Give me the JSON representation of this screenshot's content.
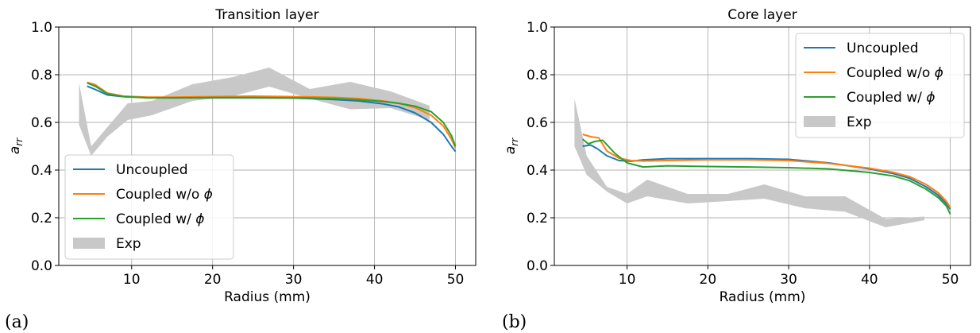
{
  "figure": {
    "panel_tags": [
      "(a)",
      "(b)"
    ]
  },
  "colors": {
    "uncoupled": "#1f77b4",
    "coupled_wo_phi": "#ff7f0e",
    "coupled_w_phi": "#2ca02c",
    "exp": "#c8c8c8",
    "grid": "#b0b0b0"
  },
  "chart_data": [
    {
      "type": "line",
      "title": "Transition layer",
      "xlabel": "Radius (mm)",
      "ylabel": "a_rr",
      "xlim": [
        1,
        52.5
      ],
      "ylim": [
        0,
        1.0
      ],
      "xticks": [
        10,
        20,
        30,
        40,
        50
      ],
      "yticks": [
        0.0,
        0.2,
        0.4,
        0.6,
        0.8,
        1.0
      ],
      "ytick_labels": [
        "0.0",
        "0.2",
        "0.4",
        "0.6",
        "0.8",
        "1.0"
      ],
      "grid": true,
      "legend_position": "lower-left",
      "series": [
        {
          "name": "Uncoupled",
          "color": "#1f77b4",
          "x": [
            4.5,
            5.5,
            7,
            9,
            12,
            15,
            20,
            25,
            30,
            35,
            38,
            41,
            43,
            45,
            47,
            48.5,
            49.5,
            50
          ],
          "y": [
            0.752,
            0.738,
            0.715,
            0.708,
            0.704,
            0.703,
            0.703,
            0.703,
            0.702,
            0.696,
            0.69,
            0.678,
            0.665,
            0.64,
            0.6,
            0.55,
            0.5,
            0.478
          ]
        },
        {
          "name": "Coupled w/o ϕ",
          "color": "#ff7f0e",
          "x": [
            4.5,
            5.5,
            7,
            9,
            12,
            15,
            20,
            25,
            30,
            35,
            38,
            41,
            43,
            45,
            47,
            48.5,
            49.5,
            50
          ],
          "y": [
            0.768,
            0.758,
            0.723,
            0.71,
            0.706,
            0.706,
            0.708,
            0.71,
            0.708,
            0.705,
            0.7,
            0.69,
            0.68,
            0.662,
            0.63,
            0.585,
            0.53,
            0.493
          ]
        },
        {
          "name": "Coupled w/ ϕ",
          "color": "#2ca02c",
          "x": [
            4.5,
            5.5,
            7,
            9,
            12,
            15,
            20,
            25,
            30,
            35,
            38,
            41,
            43,
            45,
            47,
            48.5,
            49.5,
            50
          ],
          "y": [
            0.765,
            0.752,
            0.72,
            0.708,
            0.703,
            0.703,
            0.704,
            0.704,
            0.703,
            0.7,
            0.695,
            0.688,
            0.68,
            0.668,
            0.645,
            0.6,
            0.545,
            0.5
          ]
        },
        {
          "name": "Exp",
          "color": "#c8c8c8",
          "band": true,
          "x": [
            3.5,
            5,
            7,
            9.5,
            12.5,
            17.5,
            22.5,
            27,
            32,
            37,
            42,
            46.8
          ],
          "y_upper": [
            0.765,
            0.5,
            0.58,
            0.68,
            0.69,
            0.76,
            0.79,
            0.83,
            0.74,
            0.77,
            0.73,
            0.67
          ],
          "y_lower": [
            0.59,
            0.46,
            0.54,
            0.61,
            0.63,
            0.69,
            0.71,
            0.75,
            0.7,
            0.655,
            0.66,
            0.61
          ]
        }
      ]
    },
    {
      "type": "line",
      "title": "Core layer",
      "xlabel": "Radius (mm)",
      "ylabel": "a_rr",
      "xlim": [
        1,
        52.5
      ],
      "ylim": [
        0,
        1.0
      ],
      "xticks": [
        10,
        20,
        30,
        40,
        50
      ],
      "yticks": [
        0.0,
        0.2,
        0.4,
        0.6,
        0.8,
        1.0
      ],
      "ytick_labels": [
        "0.0",
        "0.2",
        "0.4",
        "0.6",
        "0.8",
        "1.0"
      ],
      "grid": true,
      "legend_position": "upper-right",
      "series": [
        {
          "name": "Uncoupled",
          "color": "#1f77b4",
          "x": [
            4.5,
            5.5,
            6.3,
            7.5,
            9,
            10.5,
            12,
            15,
            20,
            25,
            30,
            35,
            40,
            43,
            45,
            47,
            48.5,
            49.5,
            50
          ],
          "y": [
            0.5,
            0.505,
            0.49,
            0.46,
            0.44,
            0.437,
            0.443,
            0.448,
            0.448,
            0.448,
            0.445,
            0.43,
            0.405,
            0.385,
            0.365,
            0.33,
            0.295,
            0.26,
            0.235
          ]
        },
        {
          "name": "Coupled w/o ϕ",
          "color": "#ff7f0e",
          "x": [
            4.5,
            5.5,
            6.5,
            7.5,
            9,
            10.5,
            12,
            15,
            20,
            25,
            30,
            35,
            40,
            43,
            45,
            47,
            48.5,
            49.5,
            50
          ],
          "y": [
            0.55,
            0.54,
            0.535,
            0.48,
            0.45,
            0.44,
            0.438,
            0.44,
            0.443,
            0.443,
            0.44,
            0.428,
            0.408,
            0.39,
            0.372,
            0.34,
            0.305,
            0.27,
            0.243
          ]
        },
        {
          "name": "Coupled w/ ϕ",
          "color": "#2ca02c",
          "x": [
            4.5,
            5.2,
            6,
            7,
            8.5,
            10,
            12,
            15,
            20,
            25,
            30,
            35,
            40,
            43,
            45,
            47,
            48.5,
            49.5,
            50
          ],
          "y": [
            0.53,
            0.51,
            0.52,
            0.525,
            0.47,
            0.43,
            0.413,
            0.418,
            0.415,
            0.413,
            0.41,
            0.405,
            0.39,
            0.375,
            0.355,
            0.32,
            0.285,
            0.25,
            0.215
          ]
        },
        {
          "name": "Exp",
          "color": "#c8c8c8",
          "band": true,
          "x": [
            3.5,
            5,
            7.5,
            10,
            12.5,
            17.5,
            22.5,
            27,
            32,
            37,
            42,
            46.8
          ],
          "y_upper": [
            0.7,
            0.46,
            0.33,
            0.3,
            0.36,
            0.3,
            0.3,
            0.34,
            0.29,
            0.29,
            0.195,
            0.205
          ],
          "y_lower": [
            0.5,
            0.38,
            0.31,
            0.26,
            0.29,
            0.26,
            0.27,
            0.28,
            0.24,
            0.225,
            0.16,
            0.19
          ]
        }
      ]
    }
  ]
}
